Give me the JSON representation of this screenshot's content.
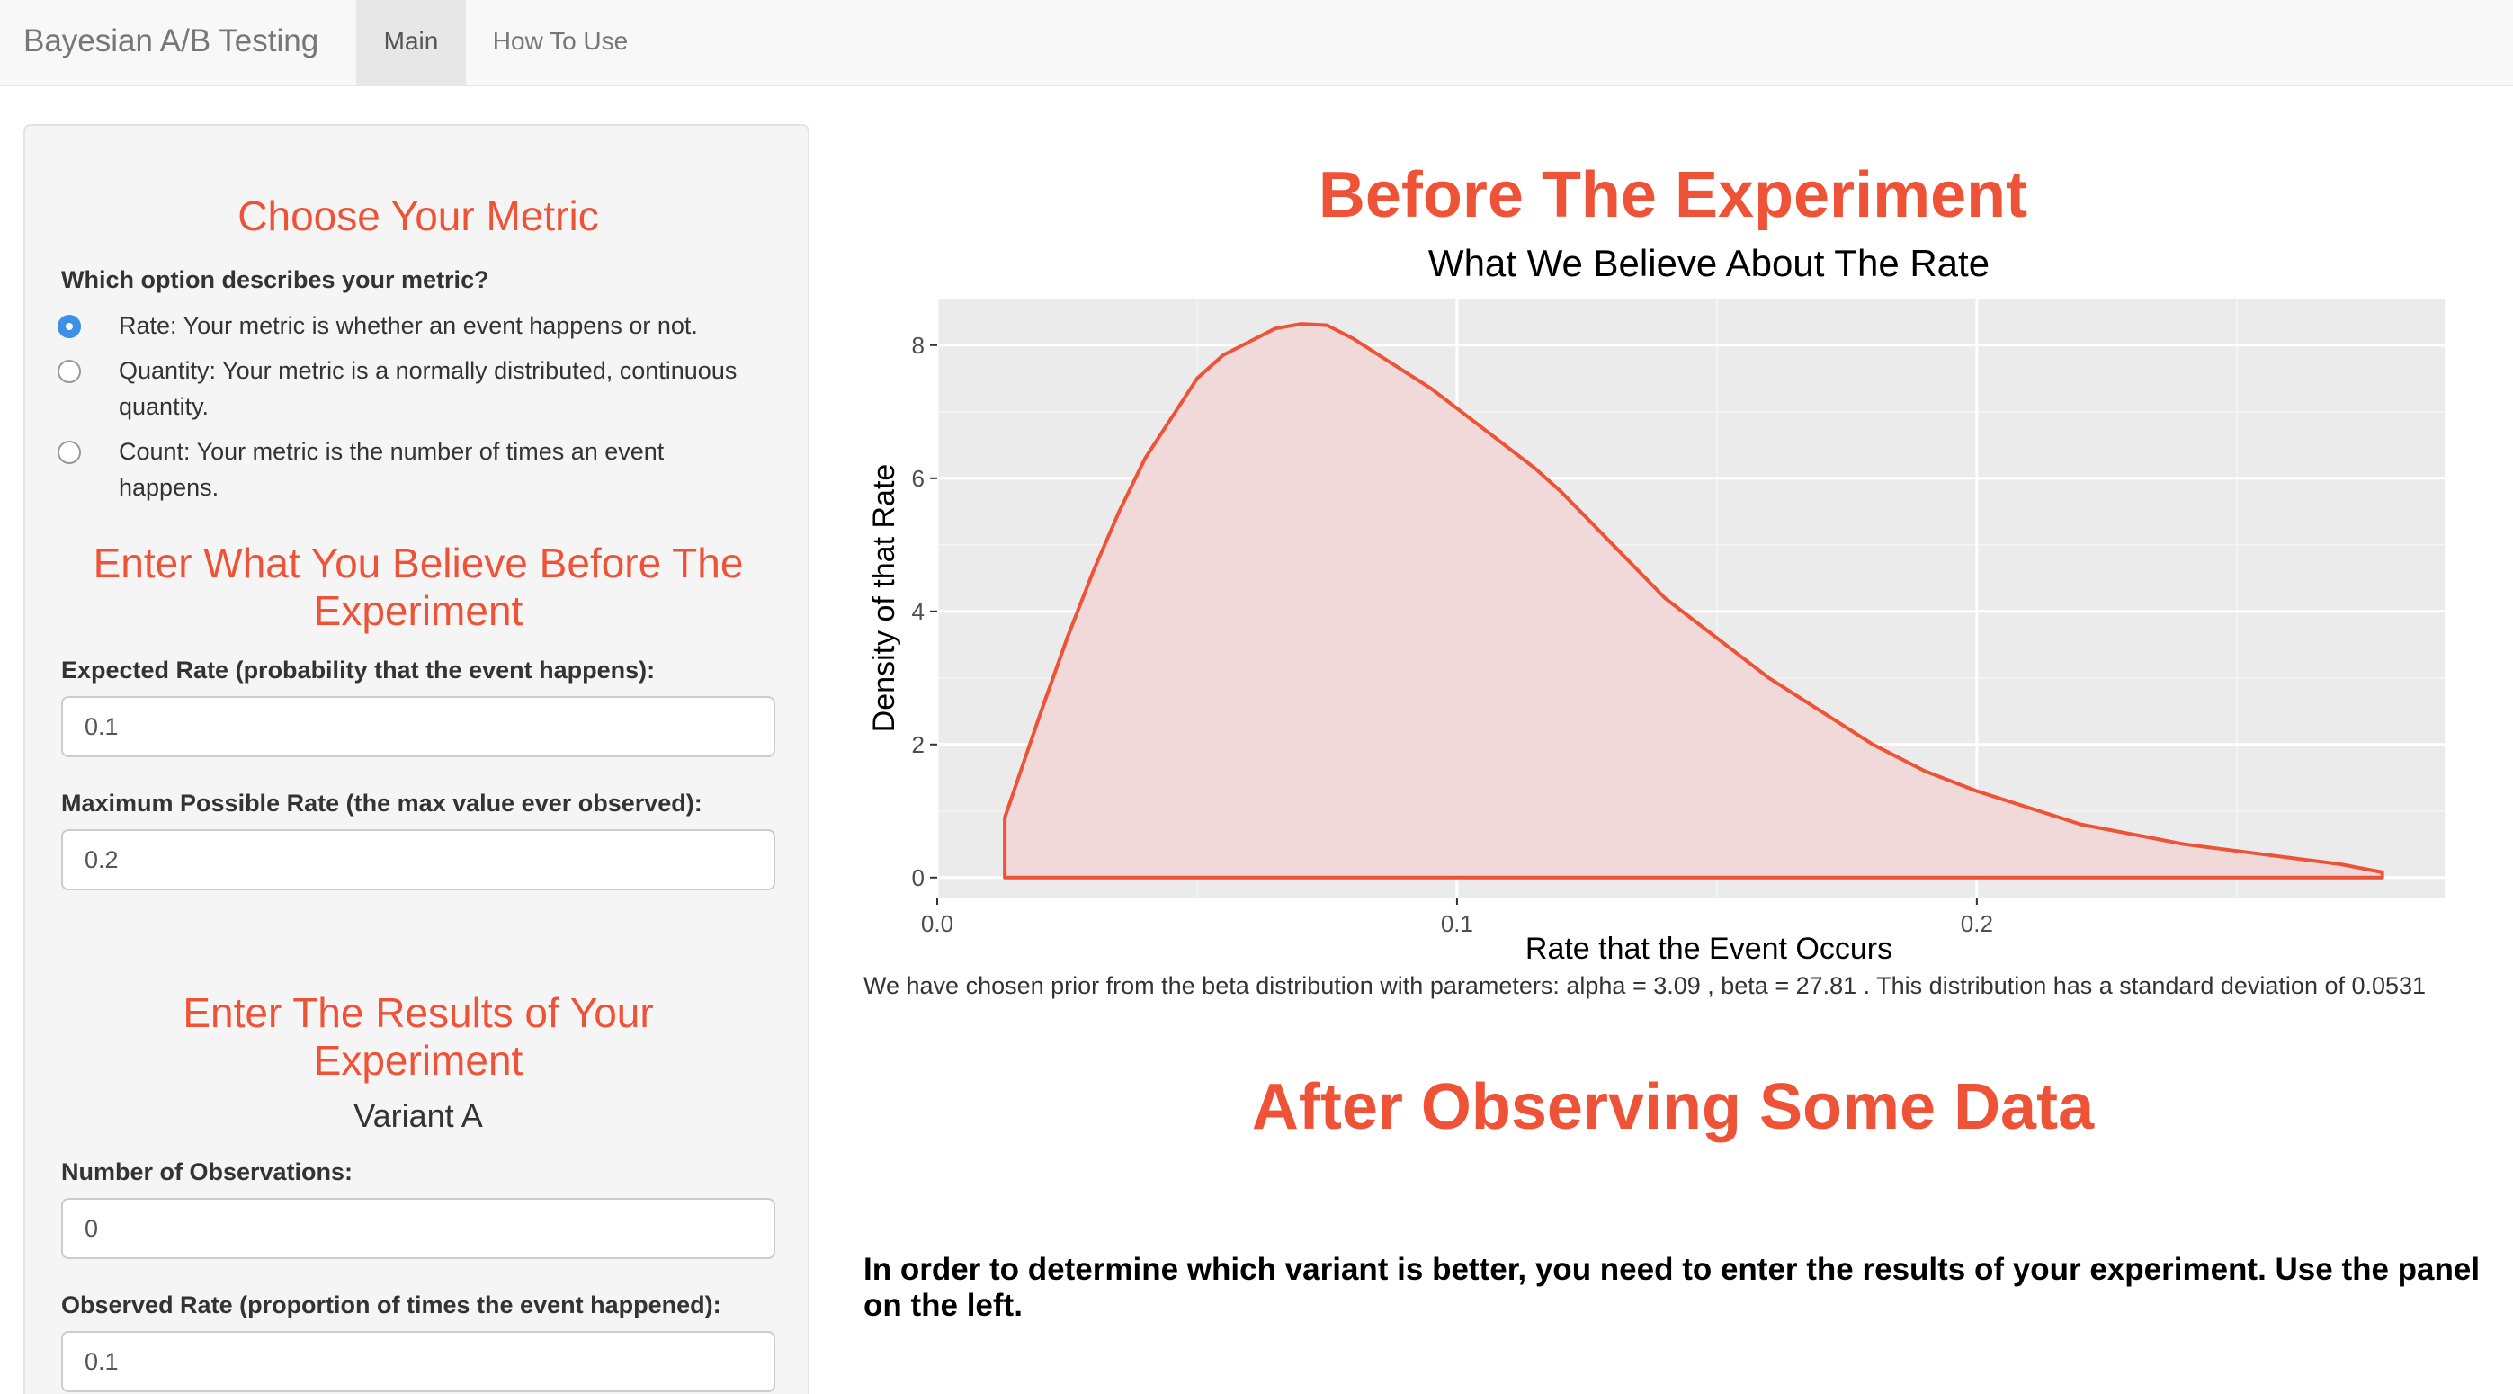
{
  "navbar": {
    "brand": "Bayesian A/B Testing",
    "tabs": [
      {
        "label": "Main",
        "active": true
      },
      {
        "label": "How To Use",
        "active": false
      }
    ]
  },
  "sidebar": {
    "metric": {
      "heading": "Choose Your Metric",
      "question": "Which option describes your metric?",
      "options": [
        {
          "label": "Rate: Your metric is whether an event happens or not.",
          "checked": true
        },
        {
          "label": "Quantity: Your metric is a normally distributed, continuous quantity.",
          "checked": false
        },
        {
          "label": "Count: Your metric is the number of times an event happens.",
          "checked": false
        }
      ]
    },
    "prior": {
      "heading": "Enter What You Believe Before The Experiment",
      "expected_label": "Expected Rate (probability that the event happens):",
      "expected_value": "0.1",
      "max_label": "Maximum Possible Rate (the max value ever observed):",
      "max_value": "0.2"
    },
    "results": {
      "heading": "Enter The Results of Your Experiment",
      "variant": "Variant A",
      "obs_label": "Number of Observations:",
      "obs_value": "0",
      "rate_label": "Observed Rate (proportion of times the event happened):",
      "rate_value": "0.1"
    }
  },
  "main": {
    "before_heading": "Before The Experiment",
    "prior_text": "We have chosen prior from the beta distribution with parameters: alpha = 3.09 , beta = 27.81 . This distribution has a standard deviation of 0.0531",
    "after_heading": "After Observing Some Data",
    "notice": "In order to determine which variant is better, you need to enter the results of your experiment. Use the panel on the left."
  },
  "colors": {
    "accent": "#ef5337",
    "panel_bg": "#ebebeb",
    "fill": "#f0d9d8",
    "radio": "#3d8fe8"
  },
  "chart_data": {
    "type": "area",
    "title": "What We Believe About The Rate",
    "xlabel": "Rate that the Event Occurs",
    "ylabel": "Density of that Rate",
    "xlim": [
      0.0,
      0.29
    ],
    "ylim": [
      -0.3,
      8.7
    ],
    "x_ticks": [
      "0.0",
      "0.1",
      "0.2"
    ],
    "x_tick_values": [
      0.0,
      0.1,
      0.2
    ],
    "y_ticks": [
      "0",
      "2",
      "4",
      "6",
      "8"
    ],
    "y_tick_values": [
      0,
      2,
      4,
      6,
      8
    ],
    "grid": true,
    "legend": "none",
    "x": [
      0.013,
      0.013,
      0.02,
      0.025,
      0.03,
      0.035,
      0.04,
      0.045,
      0.05,
      0.055,
      0.06,
      0.065,
      0.07,
      0.075,
      0.08,
      0.085,
      0.09,
      0.095,
      0.1,
      0.105,
      0.11,
      0.115,
      0.12,
      0.125,
      0.13,
      0.135,
      0.14,
      0.15,
      0.16,
      0.17,
      0.18,
      0.19,
      0.2,
      0.21,
      0.22,
      0.23,
      0.24,
      0.25,
      0.26,
      0.27,
      0.278
    ],
    "y": [
      0,
      0.9,
      2.5,
      3.6,
      4.6,
      5.5,
      6.3,
      6.9,
      7.5,
      7.85,
      8.05,
      8.25,
      8.32,
      8.3,
      8.1,
      7.85,
      7.6,
      7.35,
      7.05,
      6.75,
      6.45,
      6.15,
      5.8,
      5.4,
      5.0,
      4.6,
      4.2,
      3.6,
      3.0,
      2.5,
      2.0,
      1.6,
      1.3,
      1.05,
      0.8,
      0.65,
      0.5,
      0.4,
      0.3,
      0.2,
      0.08
    ]
  }
}
